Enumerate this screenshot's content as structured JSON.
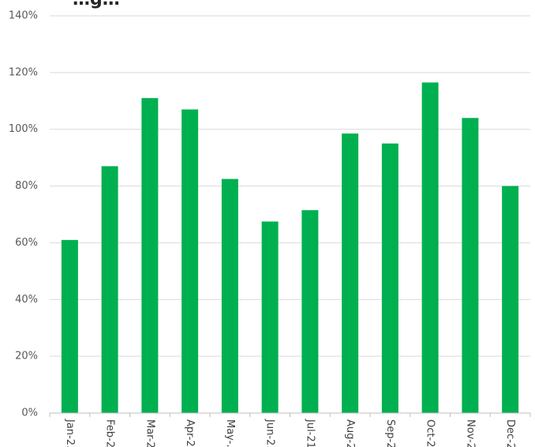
{
  "chart_data": {
    "type": "bar",
    "title": "…g…",
    "categories": [
      "Jan-2…",
      "Feb-2…",
      "Mar-2…",
      "Apr-2…",
      "May-…",
      "Jun-2…",
      "Jul-21",
      "Aug-2…",
      "Sep-2…",
      "Oct-2…",
      "Nov-2…",
      "Dec-2…"
    ],
    "series": [
      {
        "values": [
          61,
          87,
          111,
          107,
          82.5,
          67.5,
          71.5,
          98.5,
          95,
          116.5,
          104,
          80
        ]
      }
    ],
    "y_tick_labels": [
      "0%",
      "20%",
      "40%",
      "60%",
      "80%",
      "100%",
      "120%",
      "140%"
    ],
    "y_ticks": [
      0,
      20,
      40,
      60,
      80,
      100,
      120,
      140
    ],
    "ylim": [
      0,
      140
    ],
    "y_unit": "%",
    "grid": true,
    "legend": "none",
    "colors": {
      "bar": "#00b050",
      "grid": "#d9d9d9",
      "axis": "#bfbfbf"
    }
  }
}
